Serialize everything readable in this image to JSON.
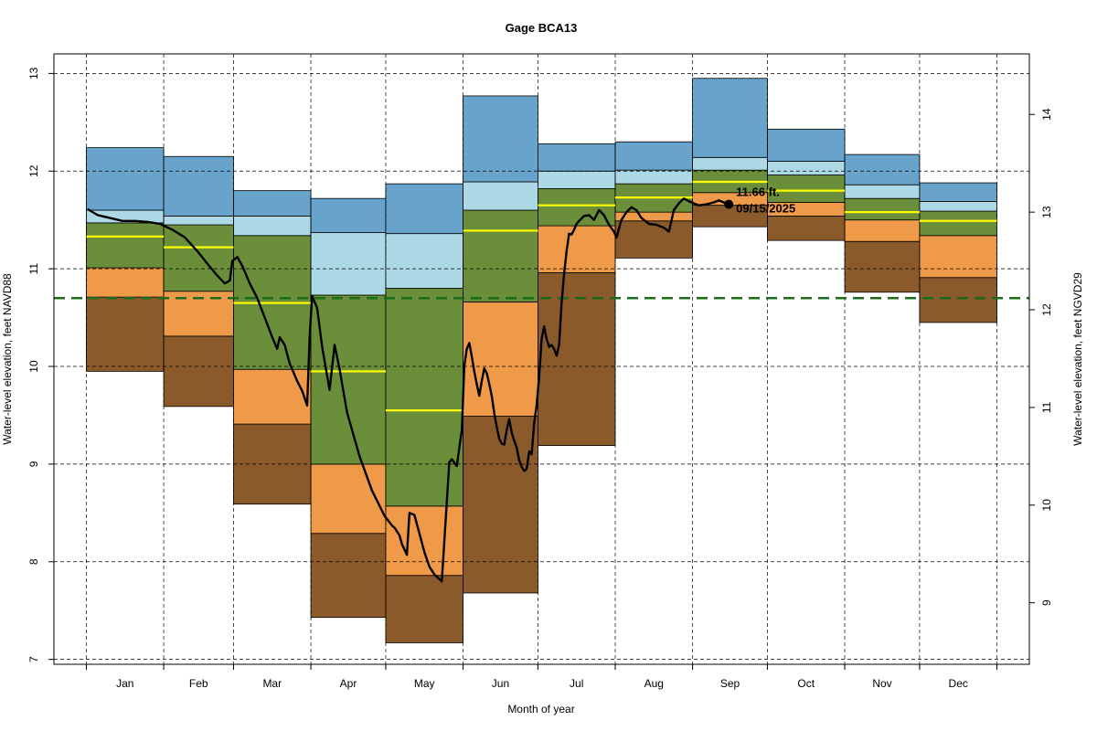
{
  "chart_data": {
    "type": "area",
    "title": "Gage BCA13",
    "xlabel": "Month of year",
    "ylabel_left": "Water-level elevation, feet NAVD88",
    "ylabel_right": "Water-level elevation, feet NGVD29",
    "ylim": [
      6.95,
      13.2
    ],
    "yticks_left": [
      "7",
      "8",
      "9",
      "10",
      "11",
      "12",
      "13"
    ],
    "right_axis_offset": 1.42,
    "yticks_right": [
      "9",
      "10",
      "11",
      "12",
      "13",
      "14"
    ],
    "grid": true,
    "months": [
      "Jan",
      "Feb",
      "Mar",
      "Apr",
      "May",
      "Jun",
      "Jul",
      "Aug",
      "Sep",
      "Oct",
      "Nov",
      "Dec"
    ],
    "month_boundaries": [
      0.5,
      31.5,
      59.5,
      90.5,
      120.5,
      151.5,
      181.5,
      212.5,
      243.5,
      273.5,
      304.5,
      334.5,
      365.5
    ],
    "band_colors": [
      "#8b5a2b",
      "#ef9a48",
      "#6b8e3a",
      "#add8e6",
      "#67a3cb"
    ],
    "median_color": "#ffff00",
    "reference_color": "#1a6b1a",
    "reference_level": 10.7,
    "bands": [
      {
        "month": "Jan",
        "levels": [
          9.95,
          10.71,
          11.01,
          11.47,
          11.6,
          12.24
        ],
        "median": 11.33
      },
      {
        "month": "Feb",
        "levels": [
          9.59,
          10.31,
          10.77,
          11.45,
          11.54,
          12.15
        ],
        "median": 11.22
      },
      {
        "month": "Mar",
        "levels": [
          8.59,
          9.41,
          9.97,
          11.34,
          11.54,
          11.8
        ],
        "median": 10.65
      },
      {
        "month": "Apr",
        "levels": [
          7.43,
          8.29,
          9.0,
          10.73,
          11.37,
          11.72
        ],
        "median": 9.95
      },
      {
        "month": "May",
        "levels": [
          7.17,
          7.86,
          8.57,
          10.8,
          11.36,
          11.87
        ],
        "median": 9.55
      },
      {
        "month": "Jun",
        "levels": [
          7.68,
          9.49,
          10.66,
          11.6,
          11.89,
          12.77
        ],
        "median": 11.39
      },
      {
        "month": "Jul",
        "levels": [
          9.19,
          10.96,
          11.44,
          11.82,
          12.0,
          12.28
        ],
        "median": 11.65
      },
      {
        "month": "Aug",
        "levels": [
          11.11,
          11.49,
          11.58,
          11.87,
          12.01,
          12.3
        ],
        "median": 11.73
      },
      {
        "month": "Sep",
        "levels": [
          11.43,
          11.65,
          11.78,
          12.01,
          12.14,
          12.95
        ],
        "median": 11.89
      },
      {
        "month": "Oct",
        "levels": [
          11.29,
          11.54,
          11.68,
          11.96,
          12.1,
          12.43
        ],
        "median": 11.8
      },
      {
        "month": "Nov",
        "levels": [
          10.76,
          11.28,
          11.5,
          11.72,
          11.86,
          12.17
        ],
        "median": 11.58
      },
      {
        "month": "Dec",
        "levels": [
          10.45,
          10.91,
          11.34,
          11.59,
          11.69,
          11.88
        ],
        "median": 11.49
      }
    ],
    "observed_series": {
      "day": [
        1,
        5,
        10,
        15,
        20,
        25,
        30,
        35,
        40,
        45,
        50,
        53,
        56,
        58,
        59,
        61,
        63,
        66,
        69,
        72,
        75,
        77,
        78,
        80,
        82,
        85,
        87,
        89,
        90,
        91,
        93,
        95,
        98,
        100,
        102,
        105,
        110,
        115,
        120,
        123,
        124,
        126,
        127,
        129,
        130,
        132,
        134,
        136,
        138,
        140,
        143,
        146,
        147,
        149,
        151,
        152,
        153,
        154,
        155,
        156,
        157,
        158,
        159,
        160,
        161,
        162,
        163,
        164,
        165,
        166,
        167,
        168,
        169,
        170,
        171,
        172,
        173,
        174,
        175,
        176,
        177,
        178,
        179,
        180,
        181,
        182,
        183,
        184,
        185,
        186,
        187,
        188,
        189,
        190,
        191,
        192,
        193,
        194,
        195,
        196,
        197,
        198,
        200,
        202,
        204,
        206,
        208,
        210,
        212,
        213,
        215,
        217,
        219,
        221,
        223,
        226,
        229,
        232,
        234,
        236,
        238,
        240,
        243,
        246,
        249,
        252,
        254,
        256,
        258
      ],
      "value": [
        11.61,
        11.55,
        11.52,
        11.49,
        11.49,
        11.48,
        11.46,
        11.4,
        11.32,
        11.18,
        11.02,
        10.93,
        10.85,
        10.88,
        11.08,
        11.12,
        11.03,
        10.85,
        10.7,
        10.5,
        10.3,
        10.18,
        10.3,
        10.22,
        10.03,
        9.85,
        9.75,
        9.6,
        10.3,
        10.72,
        10.6,
        10.2,
        9.76,
        10.22,
        9.97,
        9.53,
        9.08,
        8.73,
        8.47,
        8.37,
        8.35,
        8.27,
        8.18,
        8.07,
        8.5,
        8.48,
        8.29,
        8.1,
        7.95,
        7.87,
        7.8,
        9.02,
        9.05,
        8.98,
        9.35,
        10.0,
        10.18,
        10.24,
        10.1,
        9.95,
        9.82,
        9.7,
        9.85,
        9.98,
        9.93,
        9.82,
        9.7,
        9.52,
        9.38,
        9.26,
        9.21,
        9.2,
        9.35,
        9.46,
        9.32,
        9.24,
        9.17,
        9.04,
        8.97,
        8.93,
        8.95,
        9.13,
        9.1,
        9.42,
        9.6,
        9.9,
        10.28,
        10.41,
        10.28,
        10.2,
        10.22,
        10.18,
        10.11,
        10.22,
        10.65,
        10.95,
        11.18,
        11.36,
        11.35,
        11.4,
        11.46,
        11.49,
        11.54,
        11.55,
        11.5,
        11.6,
        11.55,
        11.45,
        11.38,
        11.32,
        11.5,
        11.58,
        11.63,
        11.6,
        11.52,
        11.46,
        11.45,
        11.42,
        11.38,
        11.6,
        11.67,
        11.72,
        11.68,
        11.65,
        11.66,
        11.68,
        11.7,
        11.68,
        11.66
      ]
    },
    "current_point": {
      "day": 258,
      "value": 11.66
    },
    "annotation": {
      "value_label": "11.66 ft.",
      "date_label": "09/15/2025"
    }
  }
}
